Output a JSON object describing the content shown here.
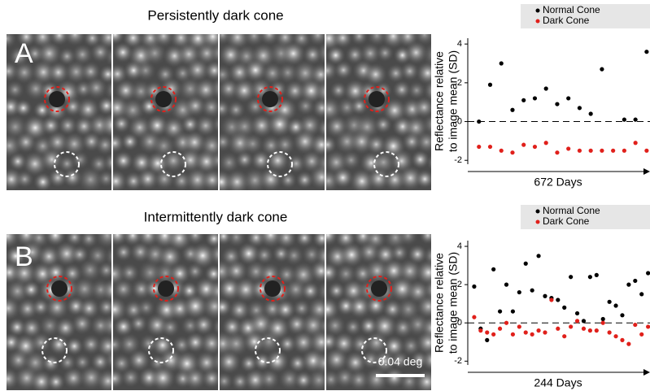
{
  "panels": [
    {
      "letter": "A",
      "title": "Persistently dark cone"
    },
    {
      "letter": "B",
      "title": "Intermittently dark cone",
      "scale_bar": "0.04 deg"
    }
  ],
  "chart_data": [
    {
      "type": "scatter",
      "ylabel": [
        "Reflectance relative",
        "to image mean (SD)"
      ],
      "xlabel": "672 Days",
      "x": [
        1,
        2,
        3,
        4,
        5,
        6,
        7,
        8,
        9,
        10,
        11,
        12,
        13,
        14,
        15,
        16
      ],
      "xlim": [
        0,
        16.3
      ],
      "ylim": [
        -2.2,
        4.3
      ],
      "yticks": [
        -2,
        0,
        2,
        4
      ],
      "zero_line": true,
      "legend": "top-right",
      "series": [
        {
          "name": "Normal Cone",
          "color": "#000000",
          "values": [
            0,
            1.9,
            3.0,
            0.6,
            1.1,
            1.2,
            1.7,
            0.9,
            1.2,
            0.7,
            0.4,
            2.7,
            null,
            0.1,
            0.1,
            3.6
          ]
        },
        {
          "name": "Dark Cone",
          "color": "#e0201b",
          "values": [
            -1.3,
            -1.3,
            -1.5,
            -1.6,
            -1.2,
            -1.3,
            -1.1,
            -1.6,
            -1.4,
            -1.5,
            -1.5,
            -1.5,
            -1.5,
            -1.5,
            -1.1,
            -1.5
          ]
        }
      ]
    },
    {
      "type": "scatter",
      "ylabel": [
        "Reflectance relative",
        "to image mean (SD)"
      ],
      "xlabel": "244 Days",
      "x": [
        1,
        2,
        3,
        4,
        5,
        6,
        7,
        8,
        9,
        10,
        11,
        12,
        13,
        14,
        15,
        16,
        17,
        18,
        19,
        20,
        21,
        22,
        23,
        24,
        25,
        26,
        27,
        28
      ],
      "xlim": [
        0,
        28.3
      ],
      "ylim": [
        -2.2,
        4.3
      ],
      "yticks": [
        -2,
        0,
        2,
        4
      ],
      "zero_line": true,
      "legend": "top-right",
      "series": [
        {
          "name": "Normal Cone",
          "color": "#000000",
          "values": [
            1.9,
            -0.3,
            -0.9,
            2.8,
            0.6,
            2.0,
            0.6,
            1.6,
            3.1,
            1.7,
            3.5,
            1.4,
            1.3,
            1.2,
            0.8,
            2.4,
            0.5,
            0.1,
            2.4,
            2.5,
            0.2,
            1.1,
            0.9,
            0.4,
            2.0,
            2.2,
            1.5,
            2.6
          ]
        },
        {
          "name": "Dark Cone",
          "color": "#e0201b",
          "values": [
            0.3,
            -0.4,
            -0.5,
            -0.6,
            -0.3,
            0,
            -0.6,
            -0.2,
            -0.5,
            -0.6,
            -0.4,
            -0.5,
            1.2,
            -0.3,
            -0.7,
            -0.2,
            0.1,
            -0.3,
            -0.4,
            -0.4,
            0,
            -0.5,
            -0.7,
            -0.9,
            -1.1,
            -0.1,
            -0.6,
            -0.2
          ]
        }
      ]
    }
  ]
}
